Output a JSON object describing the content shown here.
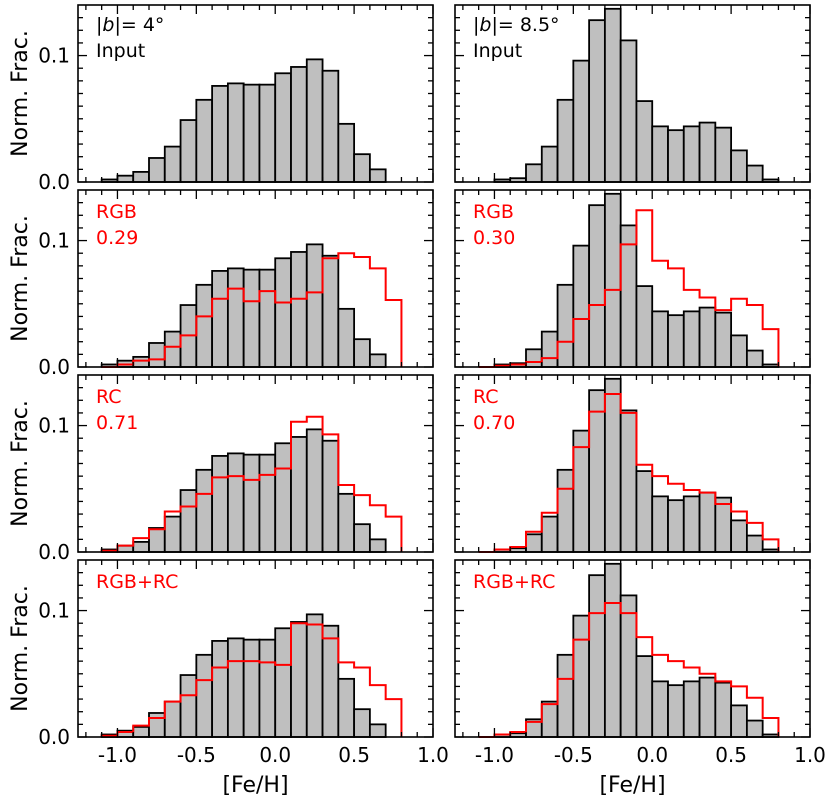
{
  "chart_data": {
    "type": "histogram-grid",
    "colors": {
      "input": "#000000",
      "input_fill": "#bfbfbf",
      "model": "#ff0000"
    },
    "grid": false,
    "bins": {
      "start": -1.1,
      "width": 0.1,
      "count": 19
    },
    "xlim": [
      -1.25,
      1.0
    ],
    "ylim": [
      0,
      0.14
    ],
    "xticks": [
      "-1.0",
      "-0.5",
      "0.0",
      "0.5",
      "1.0"
    ],
    "xtick_values": [
      -1.0,
      -0.5,
      0.0,
      0.5,
      1.0
    ],
    "yticks": [
      "0.0",
      "0.1"
    ],
    "ytick_values": [
      0.0,
      0.1
    ],
    "xlabel": "[Fe/H]",
    "ylabel": "Norm. Frac.",
    "columns": [
      {
        "field_symbol": "|b|",
        "field_value": "= 4°",
        "input": [
          0.002,
          0.005,
          0.008,
          0.019,
          0.028,
          0.049,
          0.065,
          0.076,
          0.078,
          0.077,
          0.077,
          0.086,
          0.091,
          0.097,
          0.088,
          0.046,
          0.022,
          0.01,
          0.0
        ],
        "rows": [
          {
            "label": "RGB",
            "value": "0.29",
            "model": [
              0.0,
              0.002,
              0.005,
              0.006,
              0.016,
              0.025,
              0.04,
              0.054,
              0.062,
              0.052,
              0.06,
              0.051,
              0.054,
              0.059,
              0.086,
              0.09,
              0.087,
              0.078,
              0.053
            ]
          },
          {
            "label": "RC",
            "value": "0.71",
            "model": [
              0.001,
              0.005,
              0.011,
              0.018,
              0.032,
              0.036,
              0.046,
              0.059,
              0.06,
              0.057,
              0.061,
              0.066,
              0.103,
              0.107,
              0.093,
              0.053,
              0.045,
              0.037,
              0.028
            ]
          },
          {
            "label": "RGB+RC",
            "value": "",
            "model": [
              0.001,
              0.004,
              0.009,
              0.015,
              0.028,
              0.033,
              0.045,
              0.055,
              0.06,
              0.06,
              0.059,
              0.057,
              0.09,
              0.089,
              0.078,
              0.059,
              0.055,
              0.041,
              0.03
            ]
          }
        ]
      },
      {
        "field_symbol": "|b|",
        "field_value": "= 8.5°",
        "input": [
          0.0,
          0.002,
          0.003,
          0.014,
          0.028,
          0.065,
          0.096,
          0.128,
          0.137,
          0.112,
          0.064,
          0.044,
          0.041,
          0.044,
          0.047,
          0.043,
          0.025,
          0.013,
          0.002
        ],
        "rows": [
          {
            "label": "RGB",
            "value": "0.30",
            "model": [
              0.0,
              0.001,
              0.002,
              0.004,
              0.007,
              0.02,
              0.038,
              0.049,
              0.061,
              0.097,
              0.124,
              0.084,
              0.078,
              0.061,
              0.055,
              0.045,
              0.054,
              0.049,
              0.03
            ]
          },
          {
            "label": "RC",
            "value": "0.70",
            "model": [
              0.0,
              0.002,
              0.004,
              0.016,
              0.031,
              0.05,
              0.083,
              0.111,
              0.125,
              0.11,
              0.069,
              0.06,
              0.054,
              0.049,
              0.047,
              0.038,
              0.032,
              0.023,
              0.01
            ]
          },
          {
            "label": "RGB+RC",
            "value": "",
            "model": [
              0.0,
              0.002,
              0.004,
              0.012,
              0.026,
              0.046,
              0.077,
              0.098,
              0.106,
              0.098,
              0.079,
              0.065,
              0.06,
              0.055,
              0.05,
              0.044,
              0.04,
              0.031,
              0.015
            ]
          }
        ]
      }
    ]
  }
}
